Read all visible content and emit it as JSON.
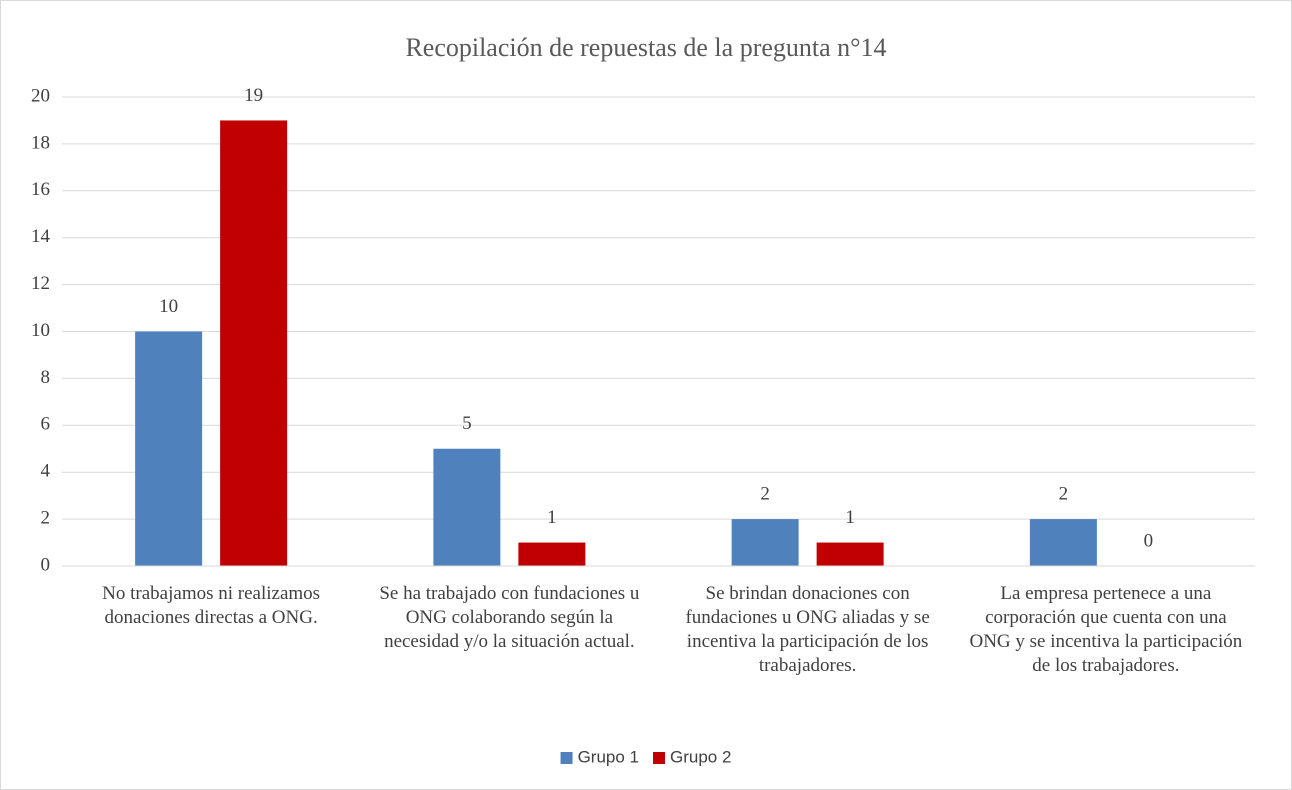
{
  "chart_data": {
    "type": "bar",
    "title": "Recopilación de repuestas de la pregunta n°14",
    "categories": [
      "No trabajamos ni realizamos donaciones directas a ONG.",
      "Se ha trabajado con fundaciones u ONG colaborando según la necesidad y/o la situación actual.",
      "Se brindan donaciones con fundaciones u ONG aliadas y se incentiva la participación de los trabajadores.",
      "La empresa pertenece a una corporación que cuenta con una ONG y se incentiva la participación de los trabajadores."
    ],
    "series": [
      {
        "name": "Grupo 1",
        "color": "#4f81bd",
        "values": [
          10,
          5,
          2,
          2
        ]
      },
      {
        "name": "Grupo 2",
        "color": "#c00000",
        "values": [
          19,
          1,
          1,
          0
        ]
      }
    ],
    "ylim": [
      0,
      20
    ],
    "yticks": [
      0,
      2,
      4,
      6,
      8,
      10,
      12,
      14,
      16,
      18,
      20
    ],
    "grid": true,
    "legend": "bottom"
  }
}
